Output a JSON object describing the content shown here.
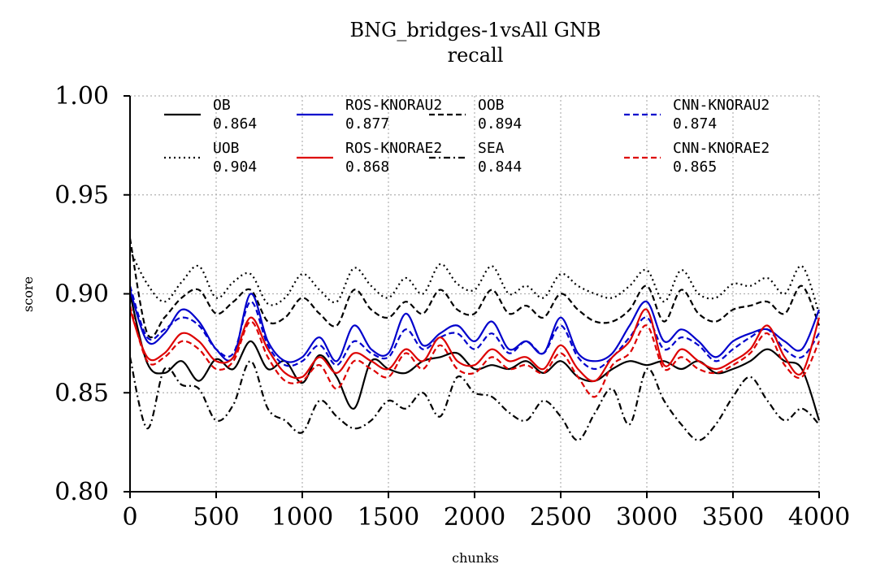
{
  "chart_data": {
    "type": "line",
    "title": "BNG_bridges-1vsAll GNB",
    "subtitle": "recall",
    "xlabel": "chunks",
    "ylabel": "score",
    "xlim": [
      0,
      4000
    ],
    "ylim": [
      0.8,
      1.0
    ],
    "xticks": [
      "0",
      "500",
      "1000",
      "1500",
      "2000",
      "2500",
      "3000",
      "3500",
      "4000"
    ],
    "yticks": [
      "0.80",
      "0.85",
      "0.90",
      "0.95",
      "1.00"
    ],
    "grid": true,
    "legend_position": "top",
    "x": [
      0,
      100,
      200,
      300,
      400,
      500,
      600,
      700,
      800,
      900,
      1000,
      1100,
      1200,
      1300,
      1400,
      1500,
      1600,
      1700,
      1800,
      1900,
      2000,
      2100,
      2200,
      2300,
      2400,
      2500,
      2600,
      2700,
      2800,
      2900,
      3000,
      3100,
      3200,
      3300,
      3400,
      3500,
      3600,
      3700,
      3800,
      3900,
      4000
    ],
    "series": [
      {
        "name": "OB",
        "score": "0.864",
        "color": "#000000",
        "dash": "solid",
        "values": [
          0.9,
          0.865,
          0.86,
          0.866,
          0.856,
          0.867,
          0.862,
          0.876,
          0.862,
          0.866,
          0.855,
          0.869,
          0.858,
          0.842,
          0.866,
          0.862,
          0.86,
          0.866,
          0.868,
          0.87,
          0.862,
          0.864,
          0.862,
          0.866,
          0.86,
          0.866,
          0.858,
          0.856,
          0.862,
          0.866,
          0.864,
          0.866,
          0.862,
          0.866,
          0.86,
          0.862,
          0.866,
          0.872,
          0.866,
          0.862,
          0.836
        ]
      },
      {
        "name": "UOB",
        "score": "0.904",
        "color": "#000000",
        "dash": "dotted",
        "values": [
          0.922,
          0.905,
          0.896,
          0.906,
          0.914,
          0.898,
          0.906,
          0.91,
          0.895,
          0.898,
          0.91,
          0.902,
          0.896,
          0.913,
          0.904,
          0.898,
          0.908,
          0.9,
          0.915,
          0.905,
          0.902,
          0.914,
          0.9,
          0.904,
          0.898,
          0.91,
          0.904,
          0.9,
          0.898,
          0.904,
          0.912,
          0.896,
          0.912,
          0.9,
          0.898,
          0.905,
          0.904,
          0.908,
          0.9,
          0.914,
          0.89
        ]
      },
      {
        "name": "ROS-KNORAU2",
        "score": "0.877",
        "color": "#0000cc",
        "dash": "solid",
        "values": [
          0.902,
          0.876,
          0.88,
          0.892,
          0.886,
          0.872,
          0.868,
          0.9,
          0.876,
          0.866,
          0.868,
          0.878,
          0.866,
          0.884,
          0.872,
          0.87,
          0.89,
          0.874,
          0.88,
          0.884,
          0.876,
          0.886,
          0.872,
          0.876,
          0.87,
          0.888,
          0.87,
          0.866,
          0.87,
          0.884,
          0.896,
          0.876,
          0.882,
          0.876,
          0.868,
          0.876,
          0.88,
          0.882,
          0.876,
          0.872,
          0.892
        ]
      },
      {
        "name": "ROS-KNORAE2",
        "score": "0.868",
        "color": "#dd0000",
        "dash": "solid",
        "values": [
          0.892,
          0.868,
          0.87,
          0.88,
          0.876,
          0.866,
          0.868,
          0.888,
          0.872,
          0.86,
          0.858,
          0.868,
          0.86,
          0.87,
          0.866,
          0.862,
          0.872,
          0.866,
          0.878,
          0.866,
          0.864,
          0.872,
          0.866,
          0.868,
          0.862,
          0.874,
          0.862,
          0.856,
          0.868,
          0.876,
          0.892,
          0.864,
          0.872,
          0.866,
          0.862,
          0.866,
          0.872,
          0.884,
          0.868,
          0.86,
          0.888
        ]
      },
      {
        "name": "OOB",
        "score": "0.894",
        "color": "#000000",
        "dash": "dashed",
        "values": [
          0.928,
          0.88,
          0.888,
          0.898,
          0.902,
          0.89,
          0.896,
          0.902,
          0.886,
          0.888,
          0.898,
          0.89,
          0.884,
          0.902,
          0.892,
          0.888,
          0.896,
          0.89,
          0.902,
          0.892,
          0.89,
          0.902,
          0.89,
          0.894,
          0.888,
          0.9,
          0.892,
          0.886,
          0.886,
          0.892,
          0.904,
          0.886,
          0.902,
          0.89,
          0.886,
          0.892,
          0.894,
          0.896,
          0.89,
          0.904,
          0.884
        ]
      },
      {
        "name": "SEA",
        "score": "0.844",
        "color": "#000000",
        "dash": "dashdot",
        "values": [
          0.868,
          0.832,
          0.862,
          0.854,
          0.852,
          0.836,
          0.844,
          0.866,
          0.842,
          0.836,
          0.83,
          0.846,
          0.838,
          0.832,
          0.836,
          0.846,
          0.842,
          0.85,
          0.838,
          0.858,
          0.85,
          0.848,
          0.84,
          0.836,
          0.846,
          0.838,
          0.826,
          0.84,
          0.852,
          0.834,
          0.862,
          0.846,
          0.834,
          0.826,
          0.834,
          0.848,
          0.858,
          0.846,
          0.836,
          0.842,
          0.834
        ]
      },
      {
        "name": "CNN-KNORAU2",
        "score": "0.874",
        "color": "#0000cc",
        "dash": "dashed",
        "values": [
          0.904,
          0.878,
          0.882,
          0.888,
          0.884,
          0.872,
          0.87,
          0.896,
          0.874,
          0.864,
          0.866,
          0.874,
          0.864,
          0.876,
          0.87,
          0.868,
          0.882,
          0.872,
          0.878,
          0.88,
          0.872,
          0.88,
          0.87,
          0.876,
          0.87,
          0.884,
          0.868,
          0.862,
          0.868,
          0.878,
          0.888,
          0.872,
          0.878,
          0.874,
          0.866,
          0.872,
          0.878,
          0.882,
          0.872,
          0.868,
          0.88
        ]
      },
      {
        "name": "CNN-KNORAE2",
        "score": "0.865",
        "color": "#dd0000",
        "dash": "dashed",
        "values": [
          0.894,
          0.866,
          0.868,
          0.876,
          0.872,
          0.862,
          0.866,
          0.886,
          0.868,
          0.856,
          0.856,
          0.864,
          0.852,
          0.866,
          0.862,
          0.858,
          0.87,
          0.862,
          0.874,
          0.862,
          0.86,
          0.868,
          0.862,
          0.864,
          0.86,
          0.87,
          0.858,
          0.848,
          0.864,
          0.87,
          0.884,
          0.862,
          0.868,
          0.862,
          0.86,
          0.864,
          0.87,
          0.88,
          0.864,
          0.858,
          0.876
        ]
      }
    ]
  }
}
